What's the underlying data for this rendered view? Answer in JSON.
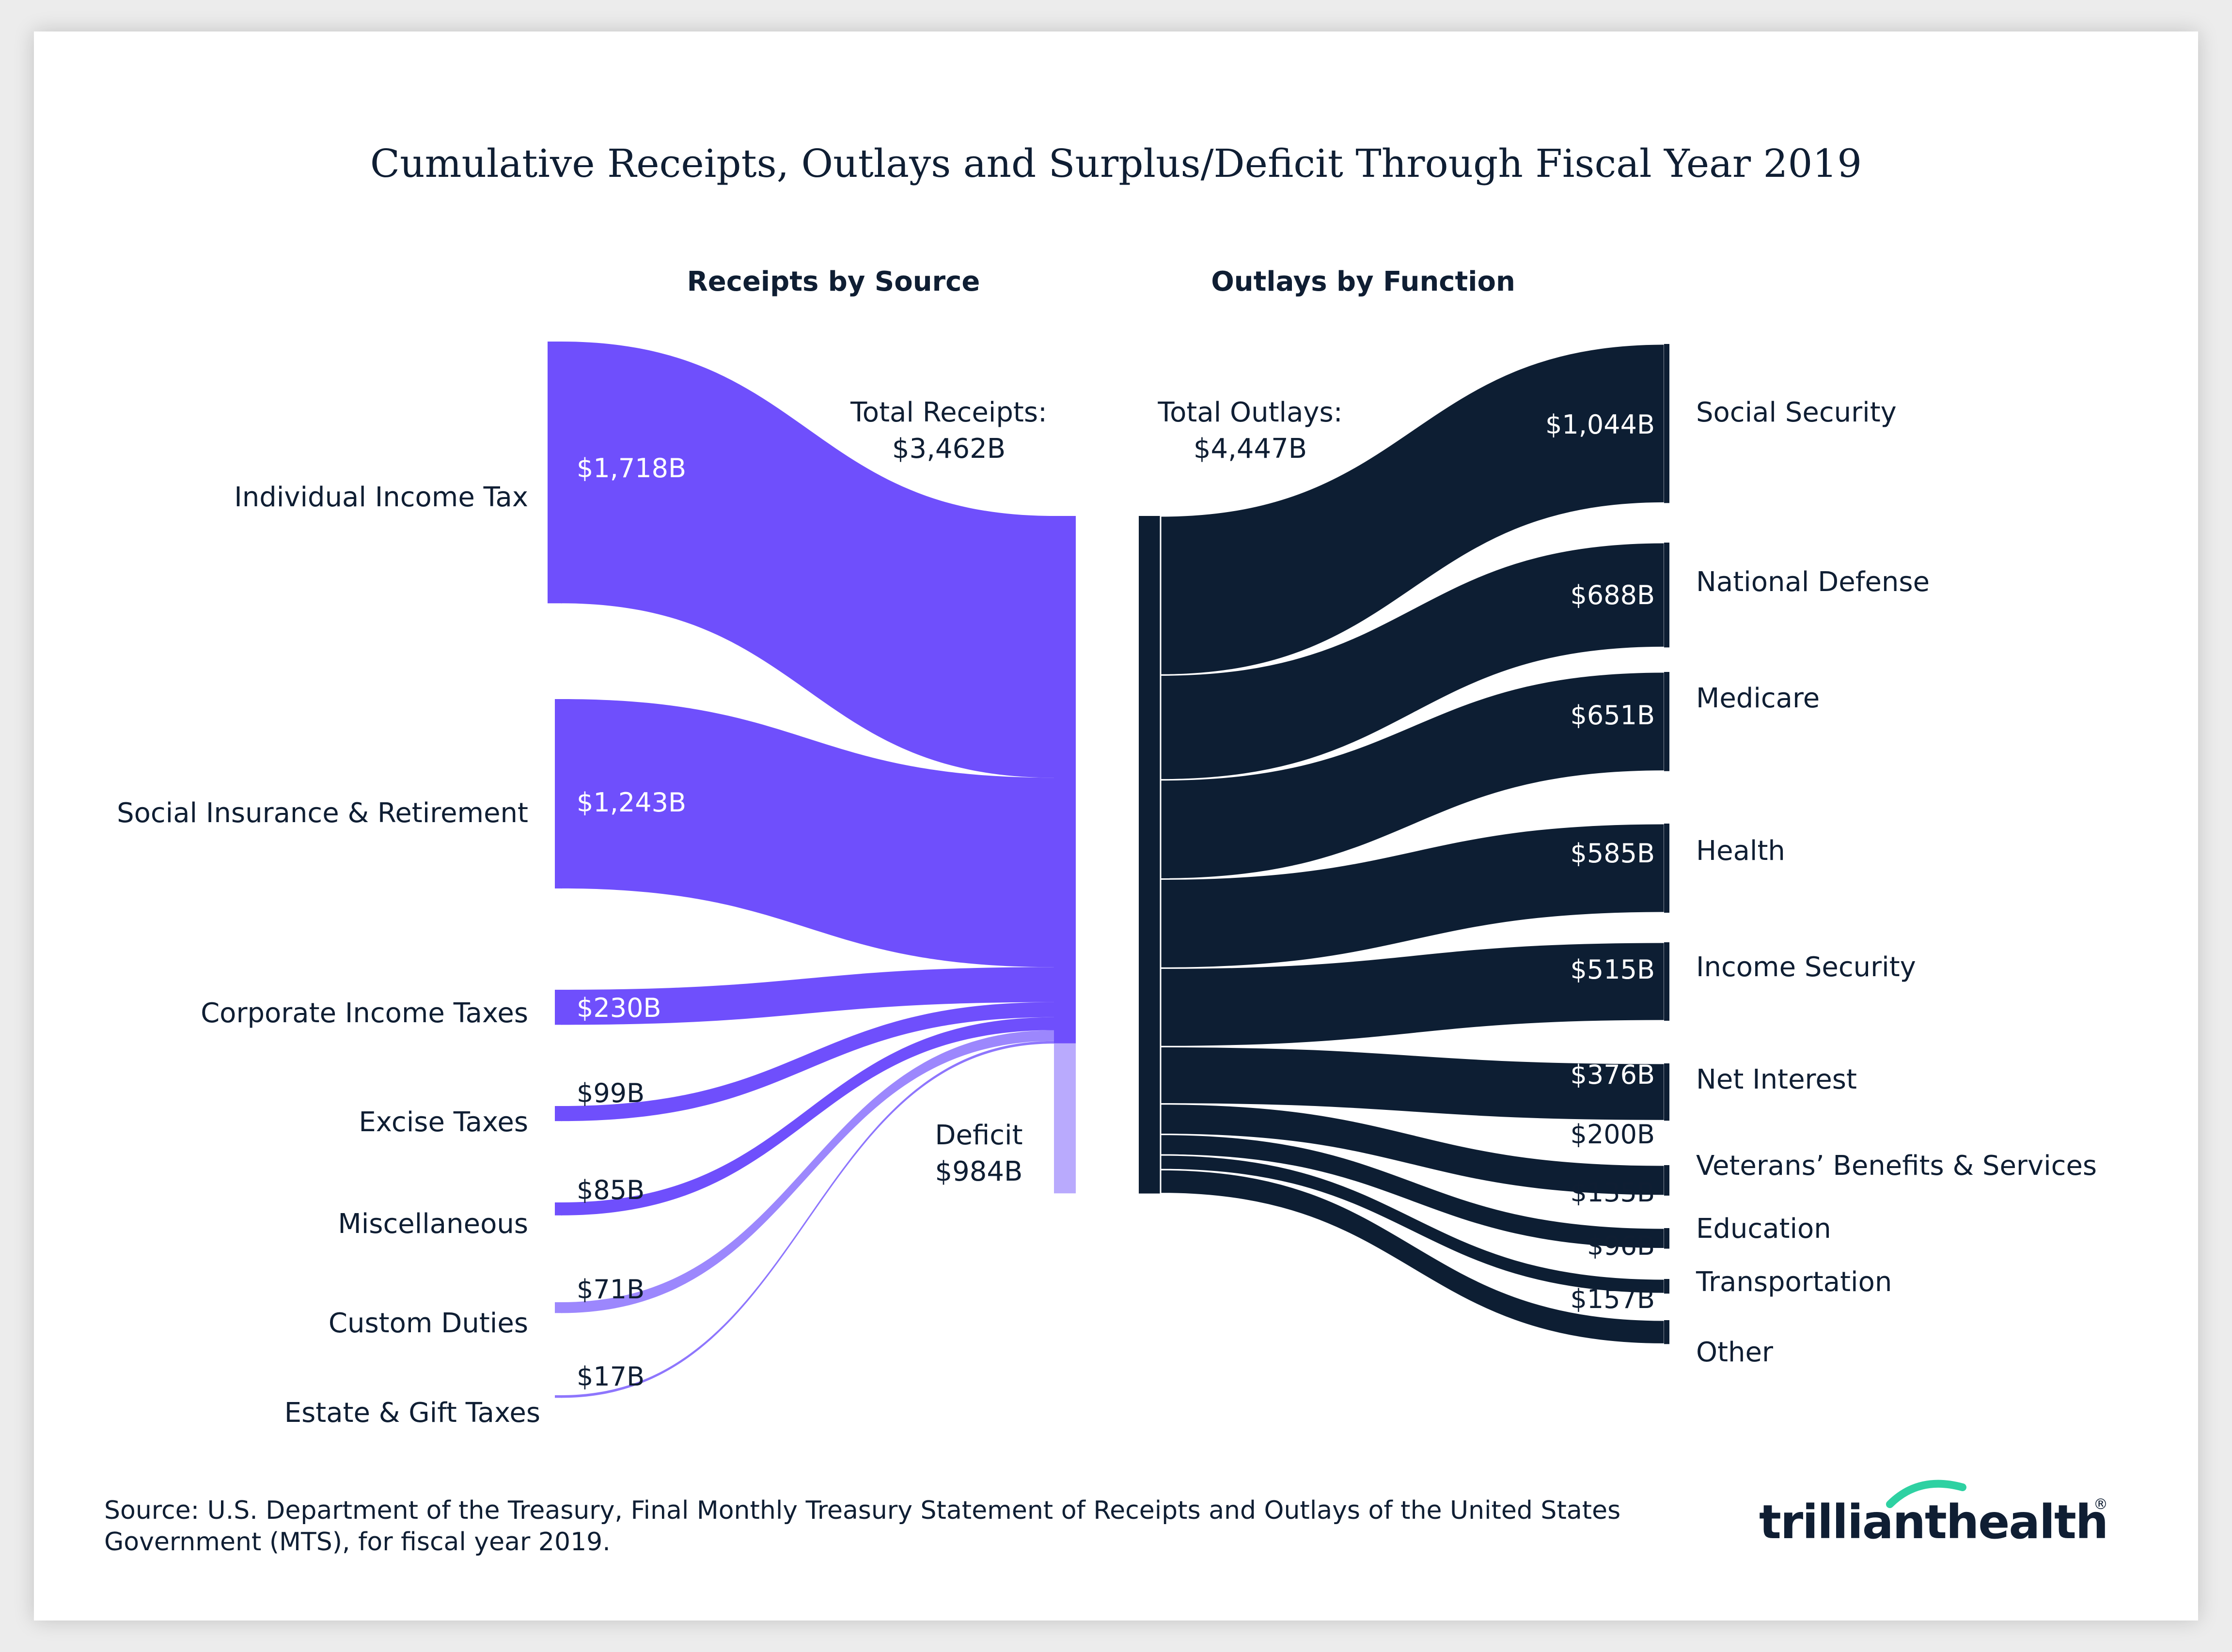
{
  "colors": {
    "receipts": "#6f4ffc",
    "deficit": "#b9aafd",
    "custom_duties": "#9c87fd",
    "estate_gift": "#8e76fd",
    "outlays": "#0d1e33",
    "logo_accent": "#2ed1a2"
  },
  "chart_data": {
    "type": "sankey",
    "title": "Cumulative Receipts, Outlays and Surplus/Deficit Through Fiscal Year 2019",
    "receipts": {
      "heading": "Receipts by Source",
      "total_label": "Total Receipts:",
      "total_value": "$3,462B",
      "total": 3462,
      "items": [
        {
          "name": "Individual Income Tax",
          "value": 1718,
          "label": "$1,718B"
        },
        {
          "name": "Social Insurance & Retirement",
          "value": 1243,
          "label": "$1,243B"
        },
        {
          "name": "Corporate Income Taxes",
          "value": 230,
          "label": "$230B"
        },
        {
          "name": "Excise Taxes",
          "value": 99,
          "label": "$99B"
        },
        {
          "name": "Miscellaneous",
          "value": 85,
          "label": "$85B"
        },
        {
          "name": "Custom Duties",
          "value": 71,
          "label": "$71B"
        },
        {
          "name": "Estate & Gift Taxes",
          "value": 17,
          "label": "$17B"
        }
      ]
    },
    "deficit": {
      "name": "Deficit",
      "value": 984,
      "label": "$984B"
    },
    "outlays": {
      "heading": "Outlays by Function",
      "total_label": "Total Outlays:",
      "total_value": "$4,447B",
      "total": 4447,
      "items": [
        {
          "name": "Social Security",
          "value": 1044,
          "label": "$1,044B"
        },
        {
          "name": "National Defense",
          "value": 688,
          "label": "$688B"
        },
        {
          "name": "Medicare",
          "value": 651,
          "label": "$651B"
        },
        {
          "name": "Health",
          "value": 585,
          "label": "$585B"
        },
        {
          "name": "Income Security",
          "value": 515,
          "label": "$515B"
        },
        {
          "name": "Net Interest",
          "value": 376,
          "label": "$376B"
        },
        {
          "name": "Veterans’ Benefits & Services",
          "value": 200,
          "label": "$200B"
        },
        {
          "name": "Education",
          "value": 135,
          "label": "$135B"
        },
        {
          "name": "Transportation",
          "value": 96,
          "label": "$96B"
        },
        {
          "name": "Other",
          "value": 157,
          "label": "$157B"
        }
      ]
    }
  },
  "source": {
    "line1": "Source: U.S. Department of the Treasury, Final Monthly Treasury Statement of Receipts and Outlays of the United States",
    "line2": "Government (MTS), for fiscal year 2019."
  },
  "logo": {
    "part1": "trilliant",
    "part2": "health",
    "mark": "®"
  }
}
